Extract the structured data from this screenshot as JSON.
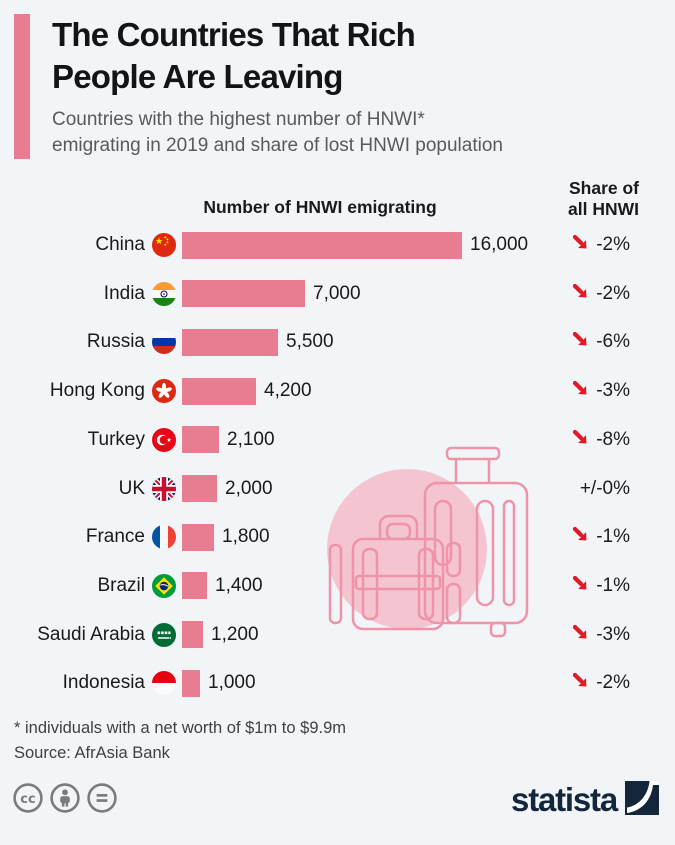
{
  "header": {
    "title": "The Countries That Rich\nPeople Are Leaving",
    "subtitle": "Countries with the highest number of HNWI*\nemigrating in 2019 and share of lost HNWI population"
  },
  "chart_data": {
    "type": "bar",
    "orientation": "horizontal",
    "value_column_header": "Number of HNWI emigrating",
    "share_column_header": "Share of\nall HNWI",
    "max_value": 16000,
    "bar_color": "#e87d92",
    "arrow_color": "#e11a27",
    "categories": [
      "China",
      "India",
      "Russia",
      "Hong Kong",
      "Turkey",
      "UK",
      "France",
      "Brazil",
      "Saudi Arabia",
      "Indonesia"
    ],
    "values": [
      16000,
      7000,
      5500,
      4200,
      2100,
      2000,
      1800,
      1400,
      1200,
      1000
    ],
    "share_of_all_hnwi": [
      "-2%",
      "-2%",
      "-6%",
      "-3%",
      "-8%",
      "+/-0%",
      "-1%",
      "-1%",
      "-3%",
      "-2%"
    ],
    "rows": [
      {
        "country": "China",
        "flag": "china-flag-icon",
        "value": 16000,
        "value_label": "16,000",
        "share_change": "-2%",
        "trend": "down"
      },
      {
        "country": "India",
        "flag": "india-flag-icon",
        "value": 7000,
        "value_label": "7,000",
        "share_change": "-2%",
        "trend": "down"
      },
      {
        "country": "Russia",
        "flag": "russia-flag-icon",
        "value": 5500,
        "value_label": "5,500",
        "share_change": "-6%",
        "trend": "down"
      },
      {
        "country": "Hong Kong",
        "flag": "hong-kong-flag-icon",
        "value": 4200,
        "value_label": "4,200",
        "share_change": "-3%",
        "trend": "down"
      },
      {
        "country": "Turkey",
        "flag": "turkey-flag-icon",
        "value": 2100,
        "value_label": "2,100",
        "share_change": "-8%",
        "trend": "down"
      },
      {
        "country": "UK",
        "flag": "uk-flag-icon",
        "value": 2000,
        "value_label": "2,000",
        "share_change": "+/-0%",
        "trend": "flat"
      },
      {
        "country": "France",
        "flag": "france-flag-icon",
        "value": 1800,
        "value_label": "1,800",
        "share_change": "-1%",
        "trend": "down"
      },
      {
        "country": "Brazil",
        "flag": "brazil-flag-icon",
        "value": 1400,
        "value_label": "1,400",
        "share_change": "-1%",
        "trend": "down"
      },
      {
        "country": "Saudi Arabia",
        "flag": "saudi-arabia-flag-icon",
        "value": 1200,
        "value_label": "1,200",
        "share_change": "-3%",
        "trend": "down"
      },
      {
        "country": "Indonesia",
        "flag": "indonesia-flag-icon",
        "value": 1000,
        "value_label": "1,000",
        "share_change": "-2%",
        "trend": "down"
      }
    ],
    "watermark": "luggage-suitcases-illustration"
  },
  "footer": {
    "footnote": "* individuals with a net worth of $1m to $9.9m",
    "source": "Source: AfrAsia Bank",
    "license_icons": [
      "cc-icon",
      "attribution-person-icon",
      "no-derivatives-equals-icon"
    ],
    "brand": "statista"
  },
  "colors": {
    "background": "#f2f5f8",
    "bar_pink": "#e87d92",
    "watermark_pink": "#f4c4d1",
    "watermark_stroke": "#ee93a8",
    "arrow_red": "#e11a27",
    "brand_navy": "#13263c",
    "subtitle_gray": "#58595b",
    "license_gray": "#7b7b7b"
  }
}
